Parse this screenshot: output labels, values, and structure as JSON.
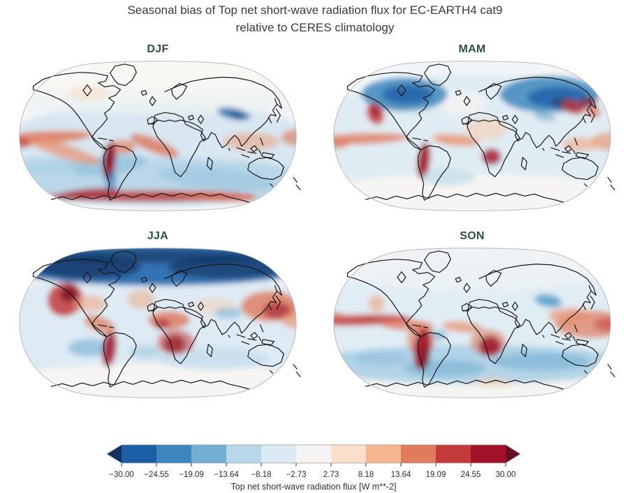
{
  "figure": {
    "title_line1": "Seasonal bias of Top net short-wave radiation flux for EC-EARTH4 cat9",
    "title_line2": "relative to CERES climatology",
    "title_color": "#3a3a3a",
    "panel_title_color": "#2f4f4f",
    "background_color": "#ffffff"
  },
  "panels": [
    {
      "label": "DJF"
    },
    {
      "label": "MAM"
    },
    {
      "label": "JJA"
    },
    {
      "label": "SON"
    }
  ],
  "colorbar": {
    "label": "Top net short-wave radiation flux [W m**-2]",
    "ticks": [
      "−30.00",
      "−24.55",
      "−19.09",
      "−13.64",
      "−8.18",
      "−2.73",
      "2.73",
      "8.18",
      "13.64",
      "19.09",
      "24.55",
      "30.00"
    ],
    "segment_colors": [
      "#1d5fa6",
      "#3d85bd",
      "#74afd3",
      "#b8d7e8",
      "#dcebf3",
      "#f6f5f3",
      "#fbdfcb",
      "#f5b68f",
      "#e07b5c",
      "#c23b3c",
      "#a11228"
    ],
    "under_arrow_color": "#12315f",
    "over_arrow_color": "#6b0d20",
    "tick_color": "#2b2b2b"
  },
  "chart_data": {
    "type": "heatmap",
    "subtype": "global_map_small_multiples",
    "projection": "Robinson",
    "title": "Seasonal bias of Top net short-wave radiation flux for EC-EARTH4 cat9 relative to CERES climatology",
    "variable": "Top net short-wave radiation flux",
    "units": "W m**-2",
    "model": "EC-EARTH4 cat9",
    "reference": "CERES climatology",
    "statistic": "seasonal bias (model minus reference)",
    "panels": [
      "DJF",
      "MAM",
      "JJA",
      "SON"
    ],
    "colorbar_levels": [
      -30.0,
      -24.55,
      -19.09,
      -13.64,
      -8.18,
      -2.73,
      2.73,
      8.18,
      13.64,
      19.09,
      24.55,
      30.0
    ],
    "colorbar_extend": "both",
    "colormap_family": "RdBu_r (blue = negative bias, red = positive bias)",
    "notable_features": {
      "DJF": [
        "white (near-zero/no sunlight) northern high latitudes",
        "red positive band along equatorial Pacific ITCZ and SPCZ",
        "strong dark-red bias along Peru-Chile coast",
        "red positive ring along Antarctic coastline",
        "blue negative Southern Ocean band",
        "dark-blue patch over Tibetan Plateau",
        "red patches around Indonesia and north of Australia"
      ],
      "MAM": [
        "strong dark-blue negative bias over Canada and Siberia",
        "red bias off California coast",
        "red ITCZ bands in Pacific and Atlantic",
        "dark-red Peru coast and Namibia/Angola coastal blobs",
        "dark-red spots over East Asia and Japan",
        "white southern polar cap"
      ],
      "JJA": [
        "strong dark-blue negative bias across entire Arctic",
        "large dark-red stratocumulus biases off California, Peru and Namibia",
        "red bias over West Africa / Sahel",
        "large red region over northwest Pacific near Japan",
        "light-blue band over southern mid-latitude oceans",
        "white southern polar night cap"
      ],
      "SON": [
        "strong red ITCZ band in equatorial Pacific",
        "strong dark-red biases off Peru and Namibia coasts",
        "broad red region over Southeast Asia and western Pacific",
        "blue negative Southern Ocean band",
        "blue spot over Tibetan Plateau"
      ]
    }
  }
}
